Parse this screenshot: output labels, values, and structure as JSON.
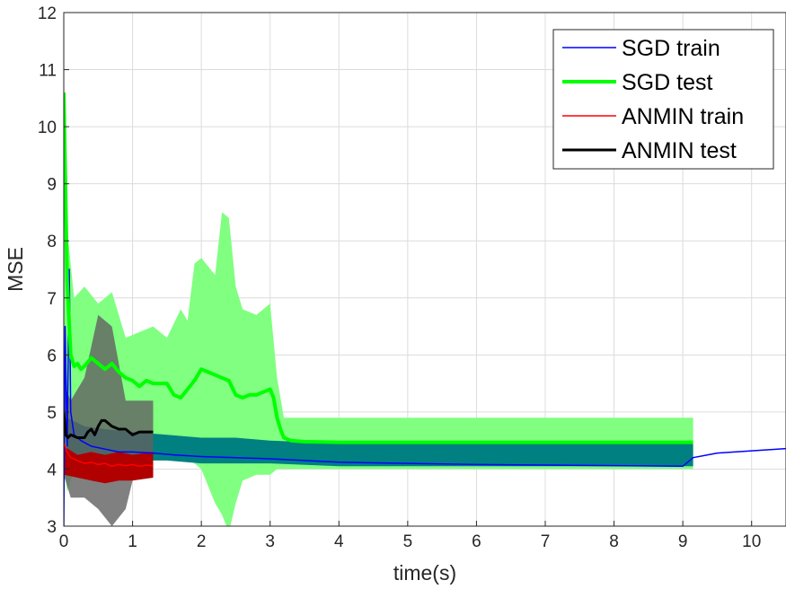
{
  "chart_data": {
    "type": "line",
    "title": "",
    "xlabel": "time(s)",
    "ylabel": "MSE",
    "xlim": [
      0,
      10.5
    ],
    "ylim": [
      3,
      12
    ],
    "xticks": [
      0,
      1,
      2,
      3,
      4,
      5,
      6,
      7,
      8,
      9,
      10
    ],
    "yticks": [
      3,
      4,
      5,
      6,
      7,
      8,
      9,
      10,
      11,
      12
    ],
    "grid": true,
    "legend_position": "top-right",
    "bands": [
      {
        "name": "SGD test range",
        "color": "#80ff80",
        "x": [
          0,
          0.05,
          0.15,
          0.3,
          0.5,
          0.7,
          0.9,
          1.1,
          1.3,
          1.5,
          1.7,
          1.8,
          1.9,
          2.0,
          2.2,
          2.3,
          2.4,
          2.5,
          2.6,
          2.8,
          3.0,
          3.1,
          3.2,
          4.0,
          5.0,
          6.0,
          7.0,
          8.0,
          9.15
        ],
        "upper": [
          10.6,
          8.2,
          7.0,
          7.2,
          6.9,
          7.1,
          6.3,
          6.4,
          6.5,
          6.3,
          6.8,
          6.6,
          7.6,
          7.7,
          7.4,
          8.5,
          8.4,
          7.2,
          6.8,
          6.7,
          6.9,
          5.6,
          4.9,
          4.9,
          4.9,
          4.9,
          4.9,
          4.9,
          4.9
        ],
        "lower": [
          4.2,
          3.6,
          4.0,
          4.1,
          4.2,
          4.2,
          4.2,
          4.2,
          4.2,
          4.2,
          4.2,
          4.2,
          4.1,
          4.0,
          3.4,
          3.2,
          2.9,
          3.4,
          3.8,
          3.9,
          3.9,
          4.0,
          4.0,
          4.0,
          4.0,
          4.0,
          4.0,
          4.0,
          4.0
        ]
      },
      {
        "name": "SGD train range",
        "color": "#008080",
        "x": [
          0.05,
          0.3,
          0.6,
          1.0,
          1.5,
          2.0,
          2.5,
          3.0,
          4.0,
          5.0,
          6.0,
          7.0,
          8.0,
          9.15
        ],
        "upper": [
          4.9,
          4.75,
          4.7,
          4.65,
          4.6,
          4.55,
          4.55,
          4.5,
          4.45,
          4.45,
          4.45,
          4.45,
          4.45,
          4.45
        ],
        "lower": [
          4.2,
          4.2,
          4.2,
          4.15,
          4.15,
          4.1,
          4.1,
          4.1,
          4.05,
          4.05,
          4.05,
          4.05,
          4.05,
          4.05
        ]
      },
      {
        "name": "ANMIN test range",
        "color": "#606060",
        "x": [
          0.0,
          0.1,
          0.3,
          0.5,
          0.7,
          0.9,
          1.0,
          1.3
        ],
        "upper": [
          5.5,
          5.2,
          5.6,
          6.7,
          6.5,
          5.2,
          5.2,
          5.2
        ],
        "lower": [
          3.9,
          3.5,
          3.5,
          3.3,
          3.0,
          3.3,
          3.8,
          4.0
        ]
      },
      {
        "name": "ANMIN train range",
        "color": "#b00000",
        "x": [
          0.0,
          0.2,
          0.4,
          0.6,
          0.8,
          1.0,
          1.3
        ],
        "upper": [
          4.4,
          4.25,
          4.3,
          4.25,
          4.3,
          4.25,
          4.3
        ],
        "lower": [
          3.9,
          3.85,
          3.8,
          3.75,
          3.8,
          3.8,
          3.85
        ]
      }
    ],
    "series": [
      {
        "name": "SGD train",
        "color": "#0000ff",
        "width": 1.5,
        "x": [
          0,
          0.02,
          0.05,
          0.08,
          0.1,
          0.15,
          0.25,
          0.4,
          0.6,
          0.8,
          1.0,
          1.3,
          1.6,
          2.0,
          2.5,
          3.0,
          3.5,
          4.0,
          5.0,
          6.0,
          7.0,
          8.0,
          9.0,
          9.15,
          9.5,
          10.0,
          10.5
        ],
        "y": [
          3.0,
          6.5,
          4.4,
          7.5,
          5.0,
          4.6,
          4.5,
          4.4,
          4.35,
          4.3,
          4.3,
          4.28,
          4.25,
          4.22,
          4.2,
          4.18,
          4.15,
          4.12,
          4.1,
          4.08,
          4.07,
          4.06,
          4.05,
          4.2,
          4.28,
          4.32,
          4.36
        ]
      },
      {
        "name": "SGD test",
        "color": "#00ff00",
        "width": 4,
        "x": [
          0,
          0.05,
          0.1,
          0.15,
          0.2,
          0.25,
          0.3,
          0.4,
          0.5,
          0.6,
          0.7,
          0.8,
          0.9,
          1.0,
          1.1,
          1.2,
          1.3,
          1.5,
          1.6,
          1.7,
          1.8,
          1.9,
          2.0,
          2.1,
          2.2,
          2.3,
          2.4,
          2.5,
          2.6,
          2.7,
          2.8,
          2.9,
          3.0,
          3.05,
          3.1,
          3.15,
          3.2,
          3.3,
          3.5,
          4.0,
          5.0,
          6.0,
          7.0,
          8.0,
          9.0,
          9.15
        ],
        "y": [
          10.6,
          7.3,
          6.0,
          5.8,
          5.85,
          5.75,
          5.8,
          5.95,
          5.85,
          5.75,
          5.85,
          5.7,
          5.6,
          5.55,
          5.45,
          5.55,
          5.5,
          5.5,
          5.3,
          5.25,
          5.4,
          5.55,
          5.75,
          5.7,
          5.65,
          5.6,
          5.55,
          5.3,
          5.25,
          5.3,
          5.3,
          5.35,
          5.4,
          5.25,
          4.9,
          4.7,
          4.55,
          4.5,
          4.48,
          4.47,
          4.47,
          4.47,
          4.47,
          4.47,
          4.47,
          4.47
        ]
      },
      {
        "name": "ANMIN train",
        "color": "#ff0000",
        "width": 1.5,
        "x": [
          0,
          0.05,
          0.1,
          0.2,
          0.3,
          0.4,
          0.5,
          0.6,
          0.7,
          0.8,
          0.9,
          1.0,
          1.1,
          1.2,
          1.3
        ],
        "y": [
          4.45,
          4.3,
          4.2,
          4.15,
          4.1,
          4.12,
          4.08,
          4.1,
          4.05,
          4.08,
          4.06,
          4.08,
          4.05,
          4.07,
          4.06
        ]
      },
      {
        "name": "ANMIN test",
        "color": "#000000",
        "width": 3,
        "x": [
          0,
          0.03,
          0.06,
          0.1,
          0.2,
          0.3,
          0.35,
          0.4,
          0.45,
          0.5,
          0.55,
          0.6,
          0.7,
          0.8,
          0.9,
          0.95,
          1.0,
          1.1,
          1.2,
          1.3
        ],
        "y": [
          5.0,
          4.6,
          4.55,
          4.6,
          4.55,
          4.55,
          4.65,
          4.7,
          4.6,
          4.75,
          4.85,
          4.85,
          4.75,
          4.7,
          4.7,
          4.65,
          4.6,
          4.65,
          4.65,
          4.65
        ]
      }
    ]
  }
}
